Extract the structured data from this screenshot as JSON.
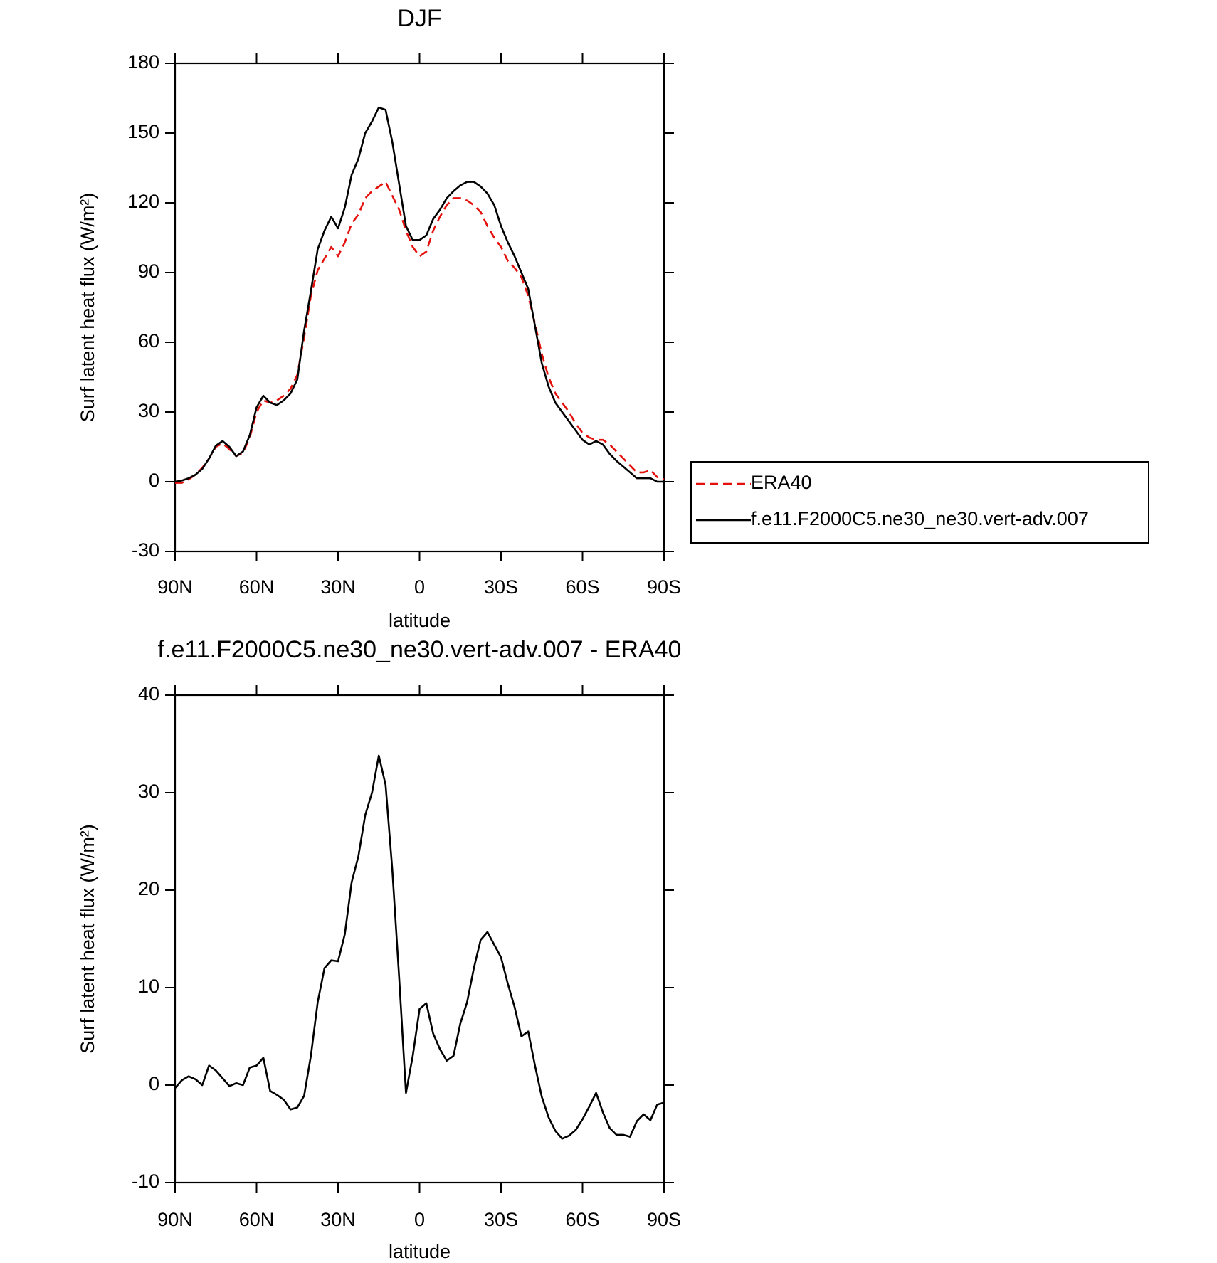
{
  "chart_data": [
    {
      "type": "line",
      "title": "DJF",
      "xlabel": "latitude",
      "ylabel": "Surf latent heat flux (W/m²)",
      "x": [
        90,
        87.5,
        85,
        82.5,
        80,
        77.5,
        75,
        72.5,
        70,
        67.5,
        65,
        62.5,
        60,
        57.5,
        55,
        52.5,
        50,
        47.5,
        45,
        42.5,
        40,
        37.5,
        35,
        32.5,
        30,
        27.5,
        25,
        22.5,
        20,
        17.5,
        15,
        12.5,
        10,
        7.5,
        5,
        2.5,
        0,
        -2.5,
        -5,
        -7.5,
        -10,
        -12.5,
        -15,
        -17.5,
        -20,
        -22.5,
        -25,
        -27.5,
        -30,
        -32.5,
        -35,
        -37.5,
        -40,
        -42.5,
        -45,
        -47.5,
        -50,
        -52.5,
        -55,
        -57.5,
        -60,
        -62.5,
        -65,
        -67.5,
        -70,
        -72.5,
        -75,
        -77.5,
        -80,
        -82.5,
        -85,
        -87.5,
        -90
      ],
      "series": [
        {
          "name": "ERA40",
          "color": "#e3110c",
          "line_style": "dashed",
          "values": [
            -0.5,
            -0.5,
            1,
            3,
            6,
            10,
            15,
            16.5,
            14,
            11,
            12.5,
            19,
            30,
            35,
            34,
            35,
            37,
            40,
            46,
            62,
            80,
            91,
            96,
            101,
            97,
            103,
            111,
            115,
            122,
            125,
            127,
            129,
            123,
            117,
            108,
            101,
            97,
            99,
            108,
            114,
            119,
            122,
            122,
            121,
            119,
            116,
            110,
            105,
            101,
            95,
            92,
            88,
            80,
            68,
            55,
            45,
            38,
            34,
            30,
            25,
            21,
            19,
            18,
            18,
            16,
            13,
            10,
            7,
            4,
            4,
            5,
            2,
            1
          ]
        },
        {
          "name": "f.e11.F2000C5.ne30_ne30.vert-adv.007",
          "color": "#000000",
          "line_style": "solid",
          "values": [
            0,
            0.5,
            1.5,
            3,
            5.5,
            10,
            15.5,
            17.5,
            15,
            11,
            13,
            20,
            32,
            37,
            34,
            33,
            35,
            38,
            44,
            65,
            82,
            100,
            108,
            114,
            109,
            118,
            132,
            139,
            150,
            155,
            161,
            160,
            146,
            128,
            110,
            104,
            104,
            106,
            113,
            117,
            122,
            125,
            127.5,
            129,
            129,
            127,
            124,
            119,
            110,
            103,
            97,
            90,
            83,
            67,
            51,
            41,
            34,
            30,
            26,
            22,
            18,
            16,
            17.5,
            16,
            12,
            9,
            6.5,
            4,
            1.5,
            1.5,
            1.5,
            0,
            0
          ]
        }
      ],
      "xlim": [
        90,
        -90
      ],
      "ylim": [
        -30,
        180
      ],
      "xticks": [
        {
          "value": 90,
          "label": "90N"
        },
        {
          "value": 60,
          "label": "60N"
        },
        {
          "value": 30,
          "label": "30N"
        },
        0,
        {
          "value": -30,
          "label": "30S"
        },
        {
          "value": -60,
          "label": "60S"
        },
        {
          "value": -90,
          "label": "90S"
        }
      ],
      "yticks": [
        -30,
        0,
        30,
        60,
        90,
        120,
        150,
        180
      ],
      "legend": "outside-right"
    },
    {
      "type": "line",
      "title": "f.e11.F2000C5.ne30_ne30.vert-adv.007 - ERA40",
      "xlabel": "latitude",
      "ylabel": "Surf latent heat flux (W/m²)",
      "x": [
        90,
        87.5,
        85,
        82.5,
        80,
        77.5,
        75,
        72.5,
        70,
        67.5,
        65,
        62.5,
        60,
        57.5,
        55,
        52.5,
        50,
        47.5,
        45,
        42.5,
        40,
        37.5,
        35,
        32.5,
        30,
        27.5,
        25,
        22.5,
        20,
        17.5,
        15,
        12.5,
        10,
        7.5,
        5,
        2.5,
        0,
        -2.5,
        -5,
        -7.5,
        -10,
        -12.5,
        -15,
        -17.5,
        -20,
        -22.5,
        -25,
        -27.5,
        -30,
        -32.5,
        -35,
        -37.5,
        -40,
        -42.5,
        -45,
        -47.5,
        -50,
        -52.5,
        -55,
        -57.5,
        -60,
        -62.5,
        -65,
        -67.5,
        -70,
        -72.5,
        -75,
        -77.5,
        -80,
        -82.5,
        -85,
        -87.5,
        -90
      ],
      "series": [
        {
          "color": "#000000",
          "line_style": "solid",
          "values": [
            -0.3,
            0.5,
            0.9,
            0.6,
            0,
            2,
            1.5,
            0.7,
            -0.1,
            0.2,
            0,
            1.8,
            2,
            2.8,
            -0.6,
            -1,
            -1.5,
            -2.5,
            -2.3,
            -1.1,
            3,
            8.5,
            12,
            12.8,
            12.7,
            15.5,
            20.8,
            23.5,
            27.7,
            30,
            33.8,
            30.8,
            22,
            11,
            -0.8,
            3,
            7.8,
            8.4,
            5.3,
            3.7,
            2.5,
            3,
            6.3,
            8.5,
            12,
            14.9,
            15.7,
            14.4,
            13.1,
            10.4,
            8,
            5,
            5.5,
            2,
            -1.2,
            -3.3,
            -4.7,
            -5.5,
            -5.2,
            -4.6,
            -3.5,
            -2.2,
            -0.8,
            -2.8,
            -4.4,
            -5.1,
            -5.1,
            -5.3,
            -3.7,
            -3,
            -3.6,
            -2,
            -1.8
          ]
        }
      ],
      "xlim": [
        90,
        -90
      ],
      "ylim": [
        -10,
        40
      ],
      "xticks": [
        {
          "value": 90,
          "label": "90N"
        },
        {
          "value": 60,
          "label": "60N"
        },
        {
          "value": 30,
          "label": "30N"
        },
        0,
        {
          "value": -30,
          "label": "30S"
        },
        {
          "value": -60,
          "label": "60S"
        },
        {
          "value": -90,
          "label": "90S"
        }
      ],
      "yticks": [
        -10,
        0,
        10,
        20,
        30,
        40
      ]
    }
  ]
}
